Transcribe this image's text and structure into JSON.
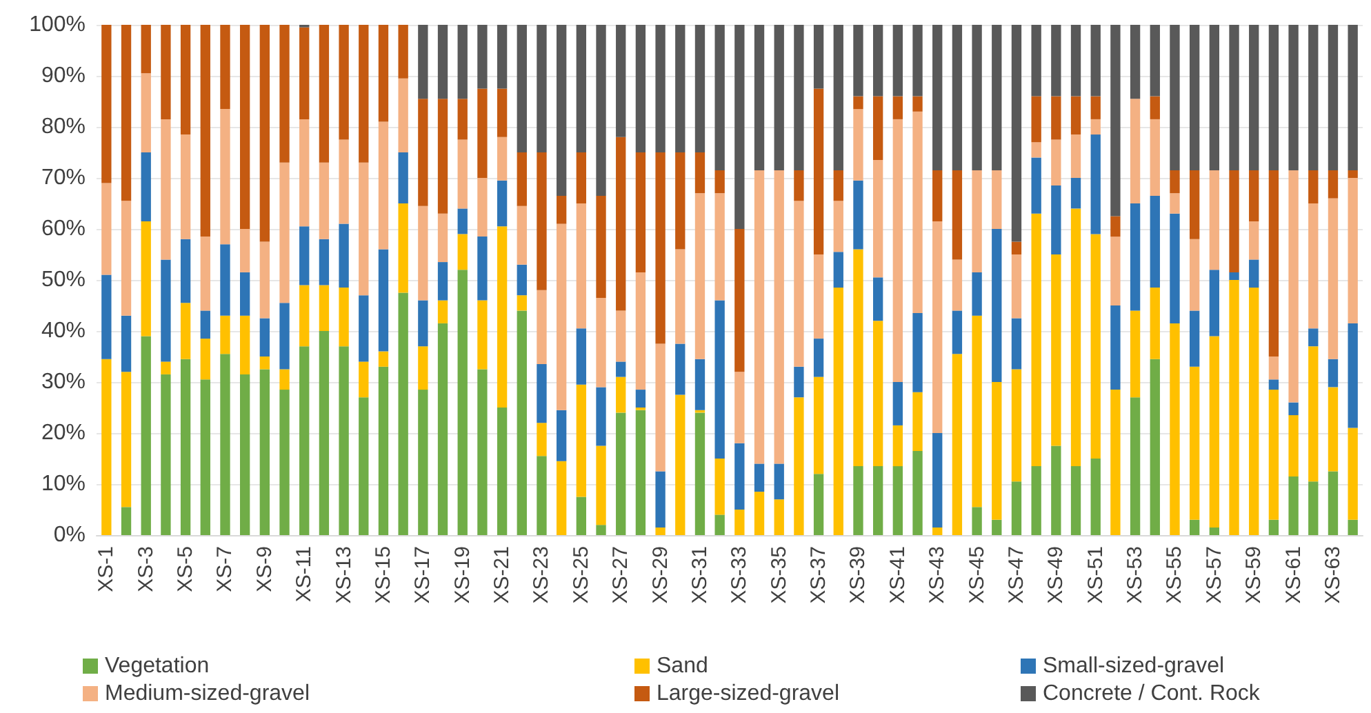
{
  "chart_data": {
    "type": "bar",
    "stacked": true,
    "categories": [
      "XS-1",
      null,
      "XS-3",
      null,
      "XS-5",
      null,
      "XS-7",
      null,
      "XS-9",
      null,
      "XS-11",
      null,
      "XS-13",
      null,
      "XS-15",
      null,
      "XS-17",
      null,
      "XS-19",
      null,
      "XS-21",
      null,
      "XS-23",
      null,
      "XS-25",
      null,
      "XS-27",
      null,
      "XS-29",
      null,
      "XS-31",
      null,
      "XS-33",
      null,
      "XS-35",
      null,
      "XS-37",
      null,
      "XS-39",
      null,
      "XS-41",
      null,
      "XS-43",
      null,
      "XS-45",
      null,
      "XS-47",
      null,
      "XS-49",
      null,
      "XS-51",
      null,
      "XS-53",
      null,
      "XS-55",
      null,
      "XS-57",
      null,
      "XS-59",
      null,
      "XS-61",
      null,
      "XS-63",
      null
    ],
    "series": [
      {
        "name": "Vegetation",
        "color": "#70ad47",
        "values": [
          0,
          5.5,
          39,
          31.5,
          34.5,
          30.5,
          35.5,
          31.5,
          32.5,
          28.5,
          37,
          40,
          37,
          27,
          33,
          47.5,
          28.5,
          41.5,
          52,
          32.5,
          25,
          44,
          15.5,
          0,
          7.5,
          2,
          24,
          24.5,
          0,
          0,
          24,
          4,
          0,
          0,
          0,
          0,
          12,
          0,
          13.5,
          13.5,
          13.5,
          16.5,
          0,
          0,
          5.5,
          3,
          10.5,
          13.5,
          17.5,
          13.5,
          15,
          0,
          27,
          34.5,
          0,
          3,
          1.5,
          0,
          0,
          3,
          11.5,
          10.5,
          12.5,
          3
        ]
      },
      {
        "name": "Sand",
        "color": "#ffc000",
        "values": [
          34.5,
          26.5,
          22.5,
          2.5,
          11,
          8,
          7.5,
          11.5,
          2.5,
          4,
          12,
          9,
          11.5,
          7,
          3,
          17.5,
          8.5,
          4.5,
          7,
          13.5,
          35.5,
          3,
          6.5,
          14.5,
          22,
          15.5,
          7,
          0.5,
          1.5,
          27.5,
          0.5,
          11,
          5,
          8.5,
          7,
          27,
          19,
          48.5,
          42.5,
          28.5,
          8,
          11.5,
          1.5,
          35.5,
          37.5,
          27,
          22,
          49.5,
          37.5,
          50.5,
          44,
          28.5,
          17,
          14,
          41.5,
          30,
          37.5,
          50,
          48.5,
          25.5,
          12,
          26.5,
          16.5,
          18
        ]
      },
      {
        "name": "Small-sized-gravel",
        "color": "#2e75b6",
        "values": [
          16.5,
          11,
          13.5,
          20,
          12.5,
          5.5,
          14,
          8.5,
          7.5,
          13,
          11.5,
          9,
          12.5,
          13,
          20,
          10,
          9,
          7.5,
          5,
          12.5,
          9,
          6,
          11.5,
          10,
          11,
          11.5,
          3,
          3.5,
          11,
          10,
          10,
          31,
          13,
          5.5,
          7,
          6,
          7.5,
          7,
          13.5,
          8.5,
          8.5,
          15.5,
          18.5,
          8.5,
          8.5,
          30,
          10,
          11,
          13.5,
          6,
          19.5,
          16.5,
          21,
          18,
          21.5,
          11,
          13,
          1.5,
          5.5,
          2,
          2.5,
          3.5,
          5.5,
          20.5
        ]
      },
      {
        "name": "Medium-sized-gravel",
        "color": "#f4b183",
        "values": [
          18,
          22.5,
          15.5,
          27.5,
          20.5,
          14.5,
          26.5,
          8.5,
          15,
          27.5,
          21,
          15,
          16.5,
          26,
          25,
          14.5,
          18.5,
          9.5,
          13.5,
          11.5,
          8.5,
          11.5,
          14.5,
          36.5,
          24.5,
          17.5,
          10,
          23,
          25,
          18.5,
          32.5,
          21,
          14,
          57.5,
          57.5,
          32.5,
          16.5,
          10,
          14,
          23,
          51.5,
          39.5,
          41.5,
          10,
          20,
          11.5,
          12.5,
          3,
          9,
          8.5,
          3,
          13.5,
          20.5,
          15,
          4,
          14,
          19.5,
          0,
          7.5,
          4.5,
          45.5,
          24.5,
          31.5,
          28.5
        ]
      },
      {
        "name": "Large-sized-gravel",
        "color": "#c55a11",
        "values": [
          31,
          34.5,
          9.5,
          18.5,
          21.5,
          41.5,
          16.5,
          40,
          42.5,
          27,
          18,
          27,
          22.5,
          27,
          19,
          10.5,
          21,
          22.5,
          8,
          17.5,
          9.5,
          10.5,
          27,
          5.5,
          10,
          20,
          34,
          23.5,
          37.5,
          19,
          8,
          4.5,
          28,
          0,
          0,
          6,
          32.5,
          6,
          2.5,
          12.5,
          4.5,
          3,
          10,
          17.5,
          0,
          0,
          2.5,
          9,
          8.5,
          7.5,
          4.5,
          4,
          0,
          4.5,
          4.5,
          13.5,
          0,
          20,
          10,
          36.5,
          0,
          6.5,
          5.5,
          1.5
        ]
      },
      {
        "name": "Concrete / Cont. Rock",
        "color": "#595959",
        "values": [
          0,
          0,
          0,
          0,
          0,
          0,
          0,
          0,
          0,
          0,
          0.5,
          0,
          0,
          0,
          0,
          0,
          14.5,
          14.5,
          14.5,
          12.5,
          12.5,
          25,
          25,
          33.5,
          25,
          33.5,
          22,
          25,
          25,
          25,
          25,
          28.5,
          40,
          28.5,
          28.5,
          28.5,
          12.5,
          28.5,
          14,
          14,
          14,
          14,
          28.5,
          28.5,
          28.5,
          28.5,
          42.5,
          14,
          14,
          14,
          14,
          37.5,
          14.5,
          14,
          28.5,
          28.5,
          28.5,
          28.5,
          28.5,
          28.5,
          28.5,
          28.5,
          28.5,
          28.5
        ]
      }
    ],
    "ylim": [
      0,
      100
    ],
    "yticks": [
      {
        "value": 0,
        "label": "0%"
      },
      {
        "value": 10,
        "label": "10%"
      },
      {
        "value": 20,
        "label": "20%"
      },
      {
        "value": 30,
        "label": "30%"
      },
      {
        "value": 40,
        "label": "40%"
      },
      {
        "value": 50,
        "label": "50%"
      },
      {
        "value": 60,
        "label": "60%"
      },
      {
        "value": 70,
        "label": "70%"
      },
      {
        "value": 80,
        "label": "80%"
      },
      {
        "value": 90,
        "label": "90%"
      },
      {
        "value": 100,
        "label": "100%"
      }
    ],
    "grid": "y",
    "legend": "bottom"
  }
}
